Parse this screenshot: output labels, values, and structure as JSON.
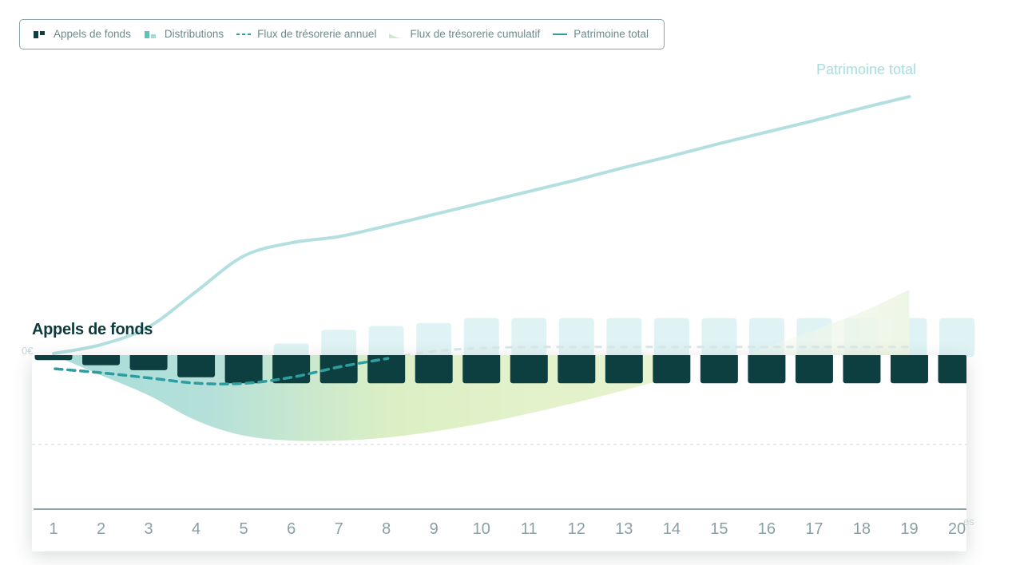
{
  "legend": {
    "items": [
      {
        "label": "Appels de fonds",
        "icon": "calls-bars-icon"
      },
      {
        "label": "Distributions",
        "icon": "distribution-bars-icon"
      },
      {
        "label": "Flux de trésorerie annuel",
        "icon": "dashed-line-icon"
      },
      {
        "label": "Flux de trésorerie cumulatif",
        "icon": "area-icon"
      },
      {
        "label": "Patrimoine total",
        "icon": "solid-line-icon"
      }
    ]
  },
  "labels": {
    "total_end": "Patrimoine total",
    "zero": "0€",
    "panel_title": "Appels de fonds",
    "x_cut": "es"
  },
  "colors": {
    "calls": "#0d3f40",
    "distributions": "#dff3f4",
    "annual_flow": "#2e9d9f",
    "cumulative_start": "#a9dcd9",
    "cumulative_end": "#e3f2c2",
    "total": "#b3dfe0",
    "legend_border": "#8aa3a6"
  },
  "chart_data": {
    "type": "bar",
    "categories": [
      "1",
      "2",
      "3",
      "4",
      "5",
      "6",
      "7",
      "8",
      "9",
      "10",
      "11",
      "12",
      "13",
      "14",
      "15",
      "16",
      "17",
      "18",
      "19",
      "20"
    ],
    "series": [
      {
        "name": "Appels de fonds",
        "values": [
          -0.5,
          -1,
          -1.5,
          -2.2,
          -2.8,
          -2.8,
          -2.8,
          -2.8,
          -2.8,
          -2.8,
          -2.8,
          -2.8,
          -2.8,
          -2.8,
          -2.8,
          -2.8,
          -2.8,
          -2.8,
          -2.8,
          -2.8
        ]
      },
      {
        "name": "Distributions",
        "values": [
          0,
          0,
          0,
          0,
          0,
          1.2,
          2.6,
          3,
          3.3,
          3.8,
          3.8,
          3.8,
          3.8,
          3.8,
          3.8,
          3.8,
          3.8,
          3.8,
          3.8,
          3.8
        ]
      },
      {
        "name": "Flux de trésorerie annuel",
        "values": [
          -0.7,
          -1.1,
          -1.6,
          -2.1,
          -2.1,
          -1.5,
          -0.5,
          0.3,
          1,
          1.3,
          1.4,
          1.4,
          1.4,
          1.4,
          1.4,
          1.4,
          1.4,
          1.4,
          1.4,
          1.4
        ]
      },
      {
        "name": "Flux de trésorerie cumulatif",
        "values": [
          0,
          -2,
          -4,
          -6.5,
          -8,
          -8.5,
          -8.5,
          -8.2,
          -7.6,
          -6.8,
          -5.8,
          -4.7,
          -3.5,
          -2.2,
          -0.8,
          0.8,
          2.5,
          4.3,
          6.5,
          9
        ]
      },
      {
        "name": "Patrimoine total",
        "values": [
          0,
          1,
          3,
          7,
          11,
          12.5,
          13.2,
          14.4,
          15.7,
          17,
          18.3,
          19.6,
          21,
          22.3,
          23.7,
          25,
          26.3,
          27.7,
          29,
          30.3
        ]
      }
    ]
  }
}
